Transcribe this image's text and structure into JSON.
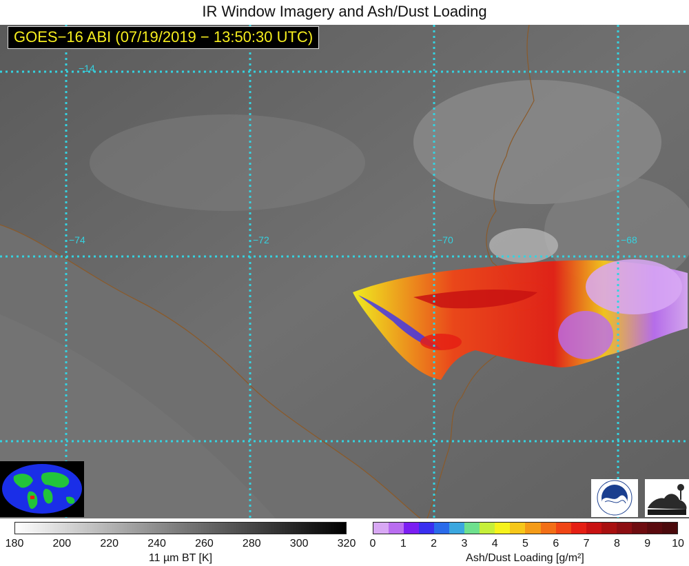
{
  "title": "IR Window Imagery and Ash/Dust Loading",
  "timestamp": "GOES−16 ABI (07/19/2019 − 13:50:30 UTC)",
  "grid_labels": {
    "lat_14": "−14",
    "lon_74": "−74",
    "lon_72": "−72",
    "lon_70": "−70",
    "lon_68": "−68"
  },
  "colors": {
    "grid": "#35d2e0",
    "timestamp_text": "#f6ee1e",
    "border": "#8a5a2a"
  },
  "bt_colorbar": {
    "label": "11 µm BT [K]",
    "ticks": [
      "180",
      "200",
      "220",
      "240",
      "260",
      "280",
      "300",
      "320"
    ]
  },
  "ash_colorbar": {
    "label": "Ash/Dust Loading [g/m²]",
    "ticks": [
      "0",
      "1",
      "2",
      "3",
      "4",
      "5",
      "6",
      "7",
      "8",
      "9",
      "10"
    ],
    "colors": [
      "#d8a8f4",
      "#b96df0",
      "#7b1ef2",
      "#3a2ff0",
      "#2a6bea",
      "#3ba7df",
      "#6ee08e",
      "#c6ef3a",
      "#f6f21c",
      "#f6c71a",
      "#f49b18",
      "#f26f17",
      "#f04516",
      "#e51f14",
      "#c81212",
      "#a81010",
      "#8c0e12",
      "#6e0c10",
      "#5a0a0e",
      "#4a0a0c"
    ]
  },
  "icons": [
    "globe-inset-icon",
    "noaa-logo-icon",
    "cimss-logo-icon"
  ]
}
